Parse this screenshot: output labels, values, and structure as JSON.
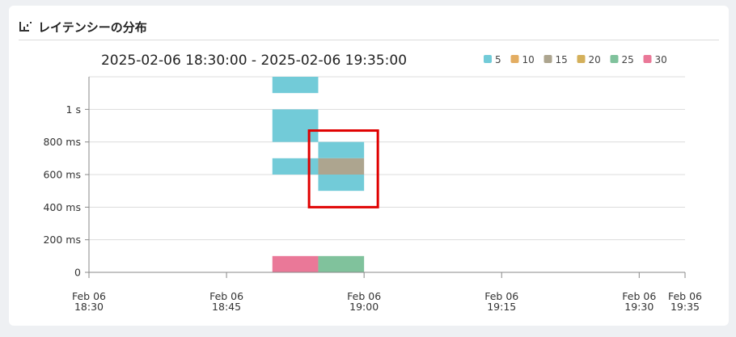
{
  "panel": {
    "title": "レイテンシーの分布",
    "icon": "histogram-icon"
  },
  "chart_data": {
    "type": "heatmap",
    "title": "2025-02-06 18:30:00 - 2025-02-06 19:35:00",
    "legend": {
      "placement": "top-right",
      "entries": [
        {
          "label": "5",
          "color": "#72cbd8"
        },
        {
          "label": "10",
          "color": "#e3ad62"
        },
        {
          "label": "15",
          "color": "#ada58f"
        },
        {
          "label": "20",
          "color": "#d4b05b"
        },
        {
          "label": "25",
          "color": "#80c29c"
        },
        {
          "label": "30",
          "color": "#ea7898"
        }
      ]
    },
    "x_ticks": [
      {
        "line1": "Feb 06",
        "line2": "18:30",
        "min": 0
      },
      {
        "line1": "Feb 06",
        "line2": "18:45",
        "min": 15
      },
      {
        "line1": "Feb 06",
        "line2": "19:00",
        "min": 30
      },
      {
        "line1": "Feb 06",
        "line2": "19:15",
        "min": 45
      },
      {
        "line1": "Feb 06",
        "line2": "19:30",
        "min": 60
      },
      {
        "line1": "Feb 06",
        "line2": "19:35",
        "min": 65
      }
    ],
    "xlim_minutes": [
      0,
      65
    ],
    "y_ticks": [
      {
        "label": "0",
        "ms": 0
      },
      {
        "label": "200 ms",
        "ms": 200
      },
      {
        "label": "400 ms",
        "ms": 400
      },
      {
        "label": "600 ms",
        "ms": 600
      },
      {
        "label": "800 ms",
        "ms": 800
      },
      {
        "label": "1 s",
        "ms": 1000
      }
    ],
    "ylim_ms": [
      0,
      1200
    ],
    "grid": true,
    "cells": [
      {
        "x0": 20,
        "x1": 25,
        "y0": 1100,
        "y1": 1200,
        "count": 5
      },
      {
        "x0": 20,
        "x1": 25,
        "y0": 800,
        "y1": 1000,
        "count": 5
      },
      {
        "x0": 20,
        "x1": 25,
        "y0": 600,
        "y1": 700,
        "count": 5
      },
      {
        "x0": 20,
        "x1": 25,
        "y0": 0,
        "y1": 100,
        "count": 30
      },
      {
        "x0": 25,
        "x1": 30,
        "y0": 700,
        "y1": 800,
        "count": 5
      },
      {
        "x0": 25,
        "x1": 30,
        "y0": 600,
        "y1": 700,
        "count": 15
      },
      {
        "x0": 25,
        "x1": 30,
        "y0": 500,
        "y1": 600,
        "count": 5
      },
      {
        "x0": 25,
        "x1": 30,
        "y0": 0,
        "y1": 100,
        "count": 25
      }
    ],
    "highlight": {
      "x0": 24,
      "x1": 31.5,
      "y0": 400,
      "y1": 870,
      "color": "#e00000"
    }
  }
}
